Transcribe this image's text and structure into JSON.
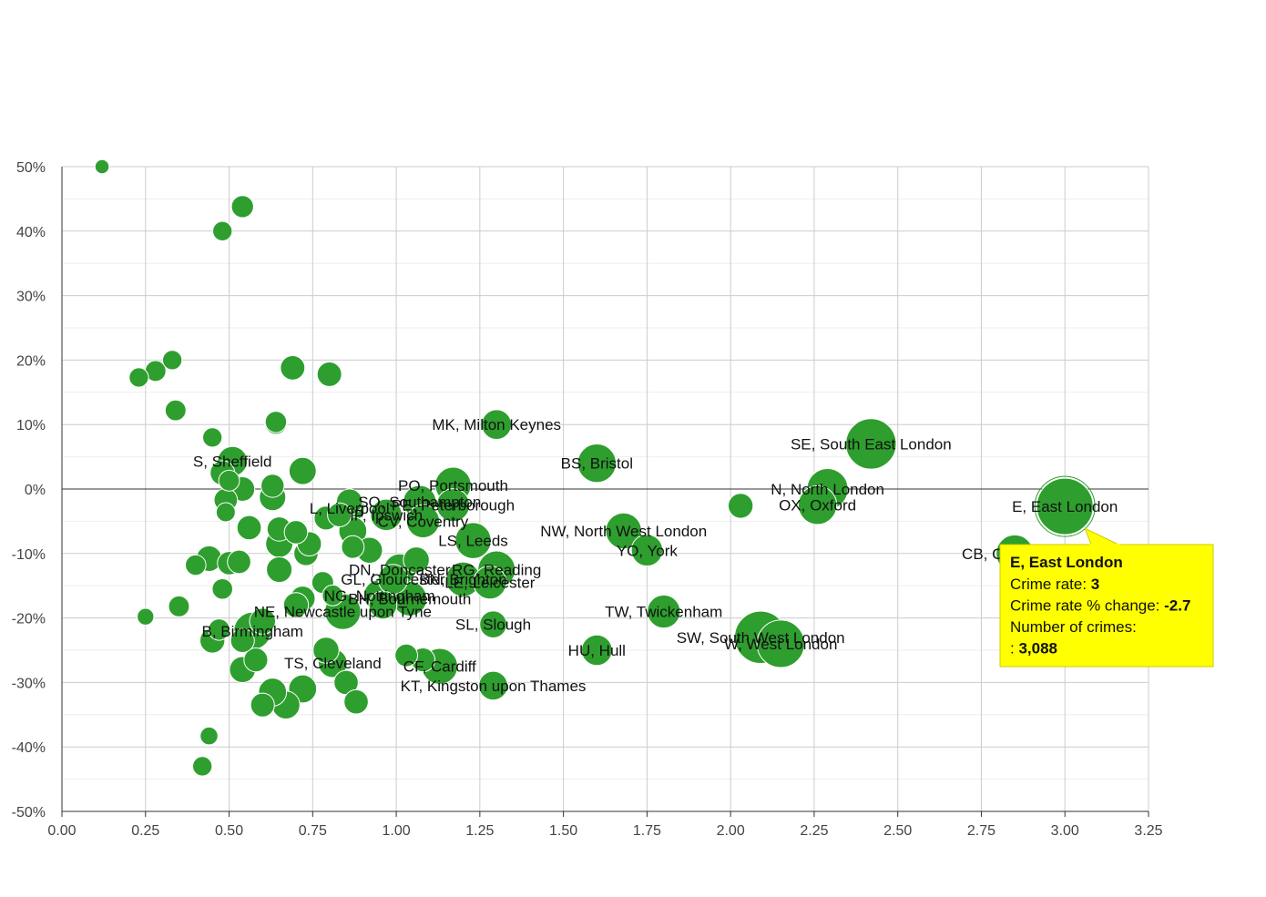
{
  "chart_data": {
    "type": "scatter",
    "xlim": [
      0,
      3.25
    ],
    "ylim": [
      -50,
      50
    ],
    "x_ticks": [
      0,
      0.25,
      0.5,
      0.75,
      1,
      1.25,
      1.5,
      1.75,
      2,
      2.25,
      2.5,
      2.75,
      3,
      3.25
    ],
    "x_tick_labels": [
      "0.00",
      "0.25",
      "0.50",
      "0.75",
      "1.00",
      "1.25",
      "1.50",
      "1.75",
      "2.00",
      "2.25",
      "2.50",
      "2.75",
      "3.00",
      "3.25"
    ],
    "y_ticks": [
      50,
      40,
      30,
      20,
      10,
      0,
      -10,
      -20,
      -30,
      -40,
      -50
    ],
    "y_tick_labels": [
      "50%",
      "40%",
      "30%",
      "20%",
      "10%",
      "0%",
      "-10%",
      "-20%",
      "-30%",
      "-40%",
      "-50%"
    ],
    "grid": true,
    "bubble_color": "#2e9e2e",
    "bubble_stroke": "#ffffff",
    "zero_line": true,
    "points": [
      {
        "label": "E, East London",
        "x": 3.0,
        "y": -2.7,
        "size": 3088
      },
      {
        "label": "SE, South East London",
        "x": 2.42,
        "y": 7,
        "size": 2400
      },
      {
        "label": "N, North London",
        "x": 2.29,
        "y": 0,
        "size": 1500
      },
      {
        "label": "OX, Oxford",
        "x": 2.26,
        "y": -2.5,
        "size": 1300
      },
      {
        "label": "",
        "x": 2.03,
        "y": -2.6,
        "size": 450
      },
      {
        "label": "SW, South West London",
        "x": 2.09,
        "y": -23,
        "size": 2600
      },
      {
        "label": "W, West London",
        "x": 2.15,
        "y": -24,
        "size": 2100
      },
      {
        "label": "CB, Cambridge",
        "x": 2.85,
        "y": -10,
        "size": 1200
      },
      {
        "label": "MK, Milton Keynes",
        "x": 1.3,
        "y": 10,
        "size": 700
      },
      {
        "label": "BS, Bristol",
        "x": 1.6,
        "y": 4,
        "size": 1300
      },
      {
        "label": "NW, North West London",
        "x": 1.68,
        "y": -6.5,
        "size": 1100
      },
      {
        "label": "YO, York",
        "x": 1.75,
        "y": -9.5,
        "size": 800
      },
      {
        "label": "TW, Twickenham",
        "x": 1.8,
        "y": -19,
        "size": 900
      },
      {
        "label": "HU, Hull",
        "x": 1.6,
        "y": -25,
        "size": 750
      },
      {
        "label": "SL, Slough",
        "x": 1.29,
        "y": -21,
        "size": 550
      },
      {
        "label": "KT, Kingston upon Thames",
        "x": 1.29,
        "y": -30.5,
        "size": 650
      },
      {
        "label": "CF, Cardiff",
        "x": 1.13,
        "y": -27.5,
        "size": 1100
      },
      {
        "label": "",
        "x": 1.08,
        "y": -26.5,
        "size": 400
      },
      {
        "label": "",
        "x": 1.03,
        "y": -25.8,
        "size": 350
      },
      {
        "label": "PO, Portsmouth",
        "x": 1.17,
        "y": 0.6,
        "size": 1100
      },
      {
        "label": "PE, Peterborough",
        "x": 1.17,
        "y": -2.5,
        "size": 900
      },
      {
        "label": "SO, Southampton",
        "x": 1.07,
        "y": -2,
        "size": 900
      },
      {
        "label": "IP, Ipswich",
        "x": 0.97,
        "y": -4,
        "size": 800
      },
      {
        "label": "CV, Coventry",
        "x": 1.08,
        "y": -5,
        "size": 900
      },
      {
        "label": "LS, Leeds",
        "x": 1.23,
        "y": -8,
        "size": 1100
      },
      {
        "label": "RG, Reading",
        "x": 1.3,
        "y": -12.5,
        "size": 1200
      },
      {
        "label": "LE, Leicester",
        "x": 1.28,
        "y": -14.5,
        "size": 900
      },
      {
        "label": "BN, Brighton",
        "x": 1.2,
        "y": -14,
        "size": 1000
      },
      {
        "label": "DN, Doncaster",
        "x": 1.01,
        "y": -12.5,
        "size": 800
      },
      {
        "label": "",
        "x": 1.06,
        "y": -11,
        "size": 500
      },
      {
        "label": "GL, Gloucester",
        "x": 0.99,
        "y": -14,
        "size": 700
      },
      {
        "label": "BH, Bournemouth",
        "x": 1.04,
        "y": -17,
        "size": 1000
      },
      {
        "label": "NG, Nottingham",
        "x": 0.95,
        "y": -16.5,
        "size": 800
      },
      {
        "label": "NE, Newcastle upon Tyne",
        "x": 0.84,
        "y": -19,
        "size": 1100
      },
      {
        "label": "",
        "x": 0.96,
        "y": -18,
        "size": 600
      },
      {
        "label": "TS, Cleveland",
        "x": 0.81,
        "y": -27,
        "size": 650
      },
      {
        "label": "L, Liverpool",
        "x": 0.86,
        "y": -3,
        "size": 700
      },
      {
        "label": "",
        "x": 0.86,
        "y": -2,
        "size": 500
      },
      {
        "label": "",
        "x": 0.79,
        "y": -4.5,
        "size": 400
      },
      {
        "label": "",
        "x": 0.83,
        "y": -4,
        "size": 400
      },
      {
        "label": "",
        "x": 0.87,
        "y": -6.5,
        "size": 600
      },
      {
        "label": "",
        "x": 0.87,
        "y": -9,
        "size": 350
      },
      {
        "label": "",
        "x": 0.92,
        "y": -9.5,
        "size": 500
      },
      {
        "label": "",
        "x": 0.78,
        "y": -14.5,
        "size": 320
      },
      {
        "label": "",
        "x": 0.81,
        "y": -16.5,
        "size": 280
      },
      {
        "label": "",
        "x": 0.72,
        "y": -17,
        "size": 450
      },
      {
        "label": "",
        "x": 0.7,
        "y": -18,
        "size": 450
      },
      {
        "label": "",
        "x": 0.79,
        "y": -25,
        "size": 500
      },
      {
        "label": "",
        "x": 0.85,
        "y": -30,
        "size": 420
      },
      {
        "label": "",
        "x": 0.88,
        "y": -33,
        "size": 420
      },
      {
        "label": "",
        "x": 0.72,
        "y": -31,
        "size": 600
      },
      {
        "label": "",
        "x": 0.67,
        "y": -33.5,
        "size": 600
      },
      {
        "label": "",
        "x": 0.63,
        "y": -31.5,
        "size": 600
      },
      {
        "label": "",
        "x": 0.6,
        "y": -33.5,
        "size": 400
      },
      {
        "label": "",
        "x": 0.58,
        "y": -26.5,
        "size": 400
      },
      {
        "label": "",
        "x": 0.54,
        "y": -28,
        "size": 500
      },
      {
        "label": "B, Birmingham",
        "x": 0.57,
        "y": -22,
        "size": 1200
      },
      {
        "label": "",
        "x": 0.6,
        "y": -20.5,
        "size": 500
      },
      {
        "label": "",
        "x": 0.54,
        "y": -23.5,
        "size": 400
      },
      {
        "label": "",
        "x": 0.45,
        "y": -23.5,
        "size": 450
      },
      {
        "label": "",
        "x": 0.47,
        "y": -21.8,
        "size": 300
      },
      {
        "label": "",
        "x": 0.35,
        "y": -18.2,
        "size": 280
      },
      {
        "label": "",
        "x": 0.25,
        "y": -19.8,
        "size": 150
      },
      {
        "label": "",
        "x": 0.48,
        "y": -15.5,
        "size": 270
      },
      {
        "label": "",
        "x": 0.4,
        "y": -11.8,
        "size": 270
      },
      {
        "label": "",
        "x": 0.44,
        "y": -10.8,
        "size": 480
      },
      {
        "label": "",
        "x": 0.5,
        "y": -11.5,
        "size": 380
      },
      {
        "label": "",
        "x": 0.53,
        "y": -11.3,
        "size": 380
      },
      {
        "label": "",
        "x": 0.65,
        "y": -12.5,
        "size": 480
      },
      {
        "label": "",
        "x": 0.73,
        "y": -10,
        "size": 420
      },
      {
        "label": "",
        "x": 0.74,
        "y": -8.5,
        "size": 420
      },
      {
        "label": "",
        "x": 0.65,
        "y": -8.5,
        "size": 560
      },
      {
        "label": "",
        "x": 0.65,
        "y": -6.2,
        "size": 420
      },
      {
        "label": "",
        "x": 0.7,
        "y": -6.7,
        "size": 380
      },
      {
        "label": "",
        "x": 0.56,
        "y": -6,
        "size": 420
      },
      {
        "label": "",
        "x": 0.49,
        "y": -3.6,
        "size": 220
      },
      {
        "label": "",
        "x": 0.49,
        "y": -1.7,
        "size": 380
      },
      {
        "label": "",
        "x": 0.54,
        "y": 0,
        "size": 430
      },
      {
        "label": "",
        "x": 0.63,
        "y": -1.3,
        "size": 520
      },
      {
        "label": "",
        "x": 0.63,
        "y": 0.5,
        "size": 370
      },
      {
        "label": "",
        "x": 0.5,
        "y": 1.3,
        "size": 280
      },
      {
        "label": "",
        "x": 0.48,
        "y": 2.5,
        "size": 430
      },
      {
        "label": "S, Sheffield",
        "x": 0.51,
        "y": 4.3,
        "size": 700
      },
      {
        "label": "",
        "x": 0.72,
        "y": 2.8,
        "size": 560
      },
      {
        "label": "",
        "x": 0.45,
        "y": 8,
        "size": 230
      },
      {
        "label": "",
        "x": 0.64,
        "y": 10.2,
        "size": 330
      },
      {
        "label": "",
        "x": 0.64,
        "y": 10.4,
        "size": 300
      },
      {
        "label": "",
        "x": 0.34,
        "y": 12.2,
        "size": 280
      },
      {
        "label": "",
        "x": 0.33,
        "y": 20,
        "size": 230
      },
      {
        "label": "",
        "x": 0.28,
        "y": 18.3,
        "size": 280
      },
      {
        "label": "",
        "x": 0.23,
        "y": 17.3,
        "size": 230
      },
      {
        "label": "",
        "x": 0.69,
        "y": 18.8,
        "size": 430
      },
      {
        "label": "",
        "x": 0.8,
        "y": 17.8,
        "size": 430
      },
      {
        "label": "",
        "x": 0.54,
        "y": 43.8,
        "size": 330
      },
      {
        "label": "",
        "x": 0.48,
        "y": 40,
        "size": 230
      },
      {
        "label": "",
        "x": 0.12,
        "y": 50,
        "size": 90
      },
      {
        "label": "",
        "x": 0.44,
        "y": -38.3,
        "size": 180
      },
      {
        "label": "",
        "x": 0.42,
        "y": -43,
        "size": 230
      }
    ],
    "tooltip": {
      "title": "E, East London",
      "rows": [
        {
          "label": "Crime rate: ",
          "value": "3"
        },
        {
          "label": "Crime rate % change: ",
          "value": "-2.7"
        },
        {
          "label": "Number of crimes:",
          "value": ""
        },
        {
          "label": ": ",
          "value": "3,088"
        }
      ],
      "background": "#ffff00",
      "border": "#cccc00"
    }
  }
}
